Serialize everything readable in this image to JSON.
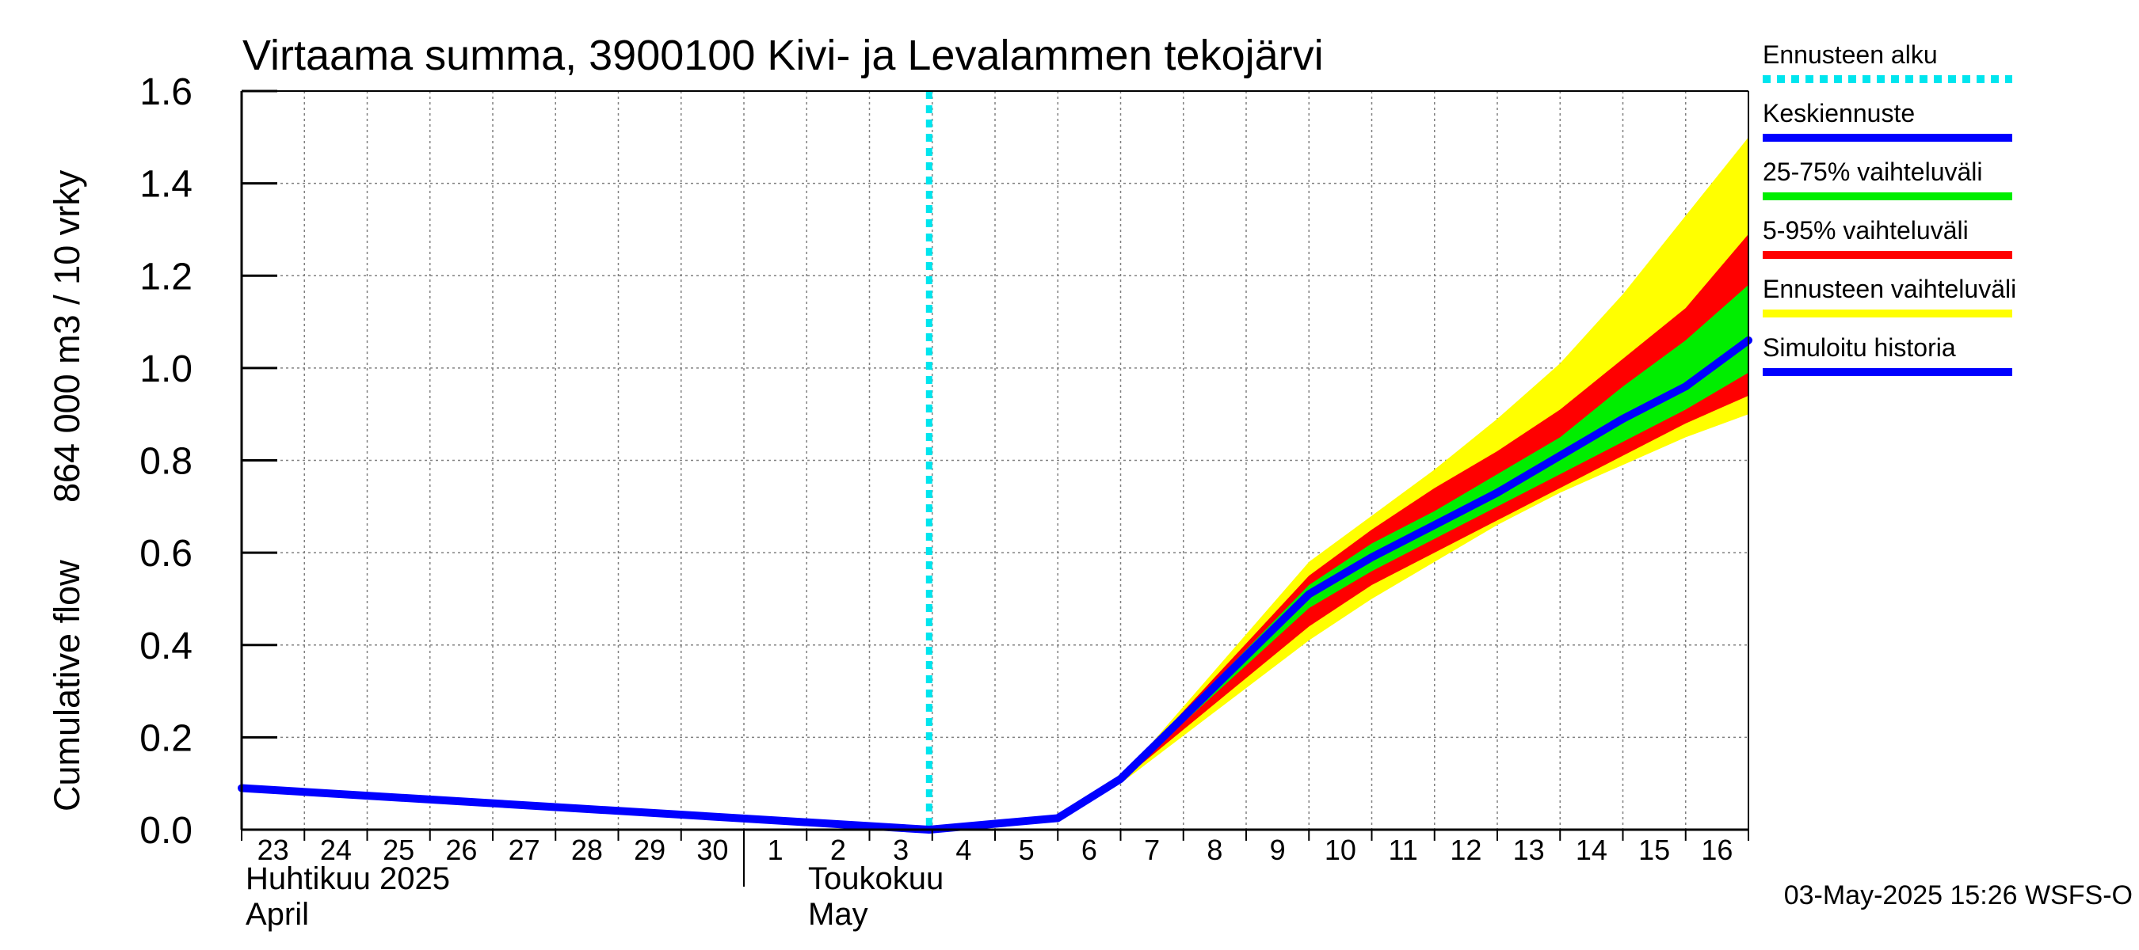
{
  "chart_data": {
    "type": "area",
    "title": "Virtaama summa, 3900100 Kivi- ja Levalammen tekojärvi",
    "ylabel_left": "Cumulative flow",
    "ylabel_right": "864 000 m3 / 10 vrky",
    "ylim": [
      0.0,
      1.6
    ],
    "yticks": [
      "0.0",
      "0.2",
      "0.4",
      "0.6",
      "0.8",
      "1.0",
      "1.2",
      "1.4",
      "1.6"
    ],
    "x_start_day": 23,
    "x_ticks": [
      "23",
      "24",
      "25",
      "26",
      "27",
      "28",
      "29",
      "30",
      "1",
      "2",
      "3",
      "4",
      "5",
      "6",
      "7",
      "8",
      "9",
      "10",
      "11",
      "12",
      "13",
      "14",
      "15",
      "16"
    ],
    "month_labels": [
      {
        "fi": "Huhtikuu  2025",
        "en": "April"
      },
      {
        "fi": "Toukokuu",
        "en": "May"
      }
    ],
    "grid": true,
    "forecast_start": 10.95,
    "history": {
      "name": "Simuloitu historia",
      "x": [
        0,
        10.95
      ],
      "y": [
        0.09,
        0.0
      ]
    },
    "mean": {
      "name": "Keskiennuste",
      "x": [
        10.95,
        13.0,
        14.0,
        17.0,
        18.0,
        19.0,
        20.0,
        21.0,
        22.0,
        23.0,
        24.0
      ],
      "y": [
        0.0,
        0.025,
        0.11,
        0.51,
        0.59,
        0.66,
        0.73,
        0.81,
        0.89,
        0.96,
        1.06
      ]
    },
    "bands": [
      {
        "name": "Ennusteen vaihteluväli",
        "color": "#ffff00",
        "x": [
          14.0,
          17.0,
          18.0,
          19.0,
          20.0,
          21.0,
          22.0,
          23.0,
          24.0
        ],
        "upper": [
          0.11,
          0.58,
          0.68,
          0.78,
          0.89,
          1.01,
          1.16,
          1.33,
          1.5
        ],
        "lower": [
          0.1,
          0.41,
          0.5,
          0.58,
          0.66,
          0.73,
          0.79,
          0.85,
          0.9
        ]
      },
      {
        "name": "5-95% vaihteluväli",
        "color": "#ff0000",
        "x": [
          14.0,
          17.0,
          18.0,
          19.0,
          20.0,
          21.0,
          22.0,
          23.0,
          24.0
        ],
        "upper": [
          0.11,
          0.55,
          0.65,
          0.74,
          0.82,
          0.91,
          1.02,
          1.13,
          1.29
        ],
        "lower": [
          0.105,
          0.44,
          0.53,
          0.6,
          0.67,
          0.74,
          0.81,
          0.88,
          0.94
        ]
      },
      {
        "name": "25-75% vaihteluväli",
        "color": "#00ee00",
        "x": [
          14.0,
          17.0,
          18.0,
          19.0,
          20.0,
          21.0,
          22.0,
          23.0,
          24.0
        ],
        "upper": [
          0.11,
          0.53,
          0.62,
          0.69,
          0.77,
          0.85,
          0.96,
          1.06,
          1.18
        ],
        "lower": [
          0.108,
          0.48,
          0.56,
          0.63,
          0.7,
          0.77,
          0.84,
          0.91,
          0.99
        ]
      }
    ],
    "legend": [
      {
        "label": "Ennusteen alku",
        "color": "#00e5ee",
        "style": "dotted"
      },
      {
        "label": "Keskiennuste",
        "color": "#0000ff",
        "style": "solid"
      },
      {
        "label": "25-75% vaihteluväli",
        "color": "#00ee00",
        "style": "solid"
      },
      {
        "label": "5-95% vaihteluväli",
        "color": "#ff0000",
        "style": "solid"
      },
      {
        "label": "Ennusteen vaihteluväli",
        "color": "#ffff00",
        "style": "solid"
      },
      {
        "label": "Simuloitu historia",
        "color": "#0000ff",
        "style": "solid"
      }
    ],
    "footer": "03-May-2025 15:26 WSFS-O"
  }
}
